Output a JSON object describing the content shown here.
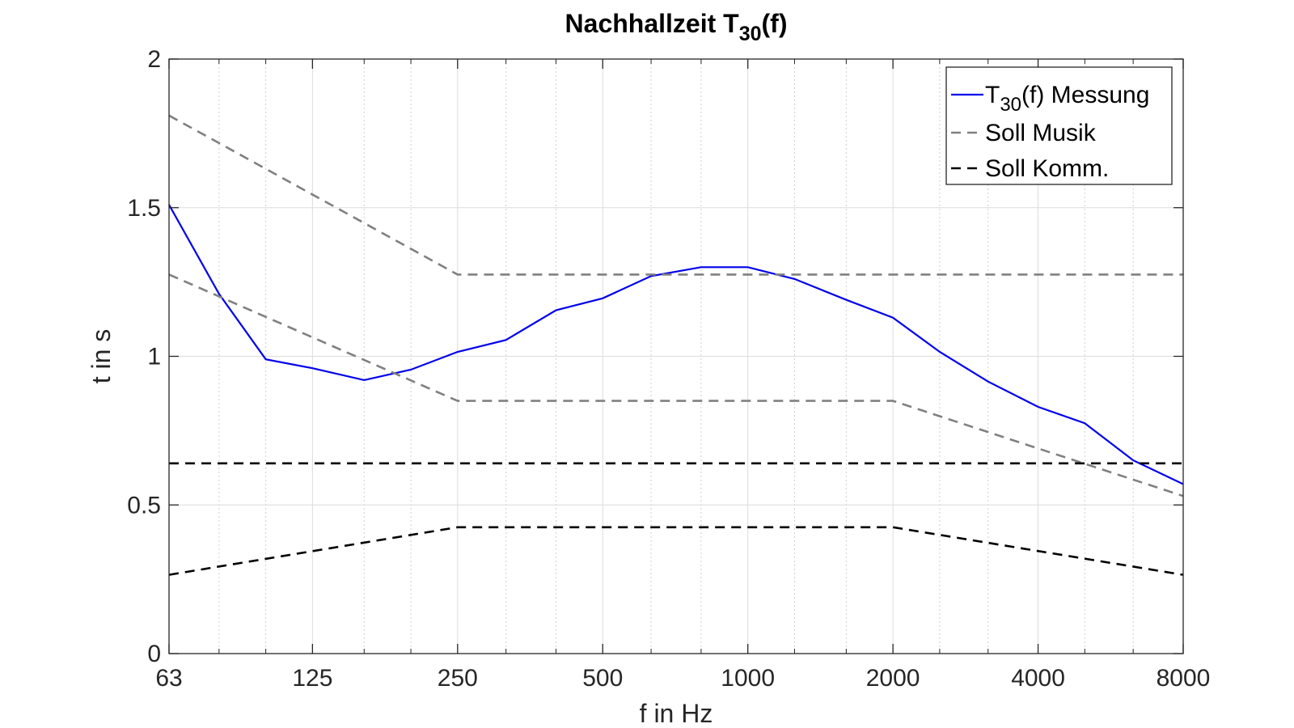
{
  "chart_data": {
    "type": "line",
    "title": {
      "main": "Nachhallzeit T",
      "sub": "30",
      "suffix": "(f)"
    },
    "xlabel": "f in Hz",
    "ylabel": "t in s",
    "x_scale": "log",
    "xlim": [
      63,
      8000
    ],
    "ylim": [
      0,
      2
    ],
    "x_ticks": [
      63,
      125,
      250,
      500,
      1000,
      2000,
      4000,
      8000
    ],
    "x_tick_labels": [
      "63",
      "125",
      "250",
      "500",
      "1000",
      "2000",
      "4000",
      "8000"
    ],
    "y_ticks": [
      0,
      0.5,
      1,
      1.5,
      2
    ],
    "y_tick_labels": [
      "0",
      "0.5",
      "1",
      "1.5",
      "2"
    ],
    "x_minor_ticks": [
      80,
      100,
      160,
      200,
      315,
      400,
      630,
      800,
      1250,
      1600,
      2500,
      3150,
      5000,
      6300
    ],
    "grid": true,
    "legend_position": "top-right",
    "series": [
      {
        "key": "messung",
        "legend": {
          "pre": "T",
          "sub": "30",
          "post": "(f) Messung"
        },
        "color": "#0000ee",
        "style": "solid",
        "x": [
          63,
          80,
          100,
          125,
          160,
          200,
          250,
          315,
          400,
          500,
          630,
          800,
          1000,
          1250,
          1600,
          2000,
          2500,
          3150,
          4000,
          5000,
          6300,
          8000
        ],
        "y": [
          1.51,
          1.21,
          0.99,
          0.96,
          0.92,
          0.955,
          1.015,
          1.055,
          1.155,
          1.195,
          1.27,
          1.3,
          1.3,
          1.26,
          1.19,
          1.13,
          1.015,
          0.915,
          0.83,
          0.775,
          0.65,
          0.57
        ]
      },
      {
        "key": "soll-musik-upper",
        "legend": {
          "pre": "Soll Musik",
          "sub": "",
          "post": ""
        },
        "color": "#808080",
        "style": "dashed",
        "x": [
          63,
          250,
          8000
        ],
        "y": [
          1.81,
          1.275,
          1.275
        ]
      },
      {
        "key": "soll-musik-lower",
        "color": "#808080",
        "style": "dashed",
        "x": [
          63,
          250,
          2000,
          8000
        ],
        "y": [
          1.275,
          0.85,
          0.85,
          0.53
        ]
      },
      {
        "key": "soll-komm-upper",
        "legend": {
          "pre": "Soll Komm.",
          "sub": "",
          "post": ""
        },
        "color": "#000000",
        "style": "dashed",
        "x": [
          63,
          8000
        ],
        "y": [
          0.64,
          0.64
        ]
      },
      {
        "key": "soll-komm-lower",
        "color": "#000000",
        "style": "dashed",
        "x": [
          63,
          250,
          2000,
          8000
        ],
        "y": [
          0.265,
          0.425,
          0.425,
          0.265
        ]
      }
    ]
  }
}
